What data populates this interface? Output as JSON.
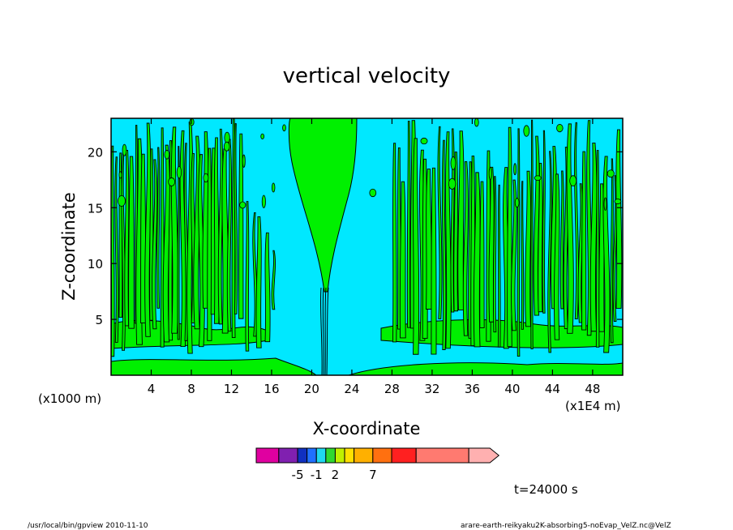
{
  "chart_data": {
    "type": "contour",
    "title": "vertical velocity",
    "xlabel": "X-coordinate",
    "ylabel": "Z-coordinate",
    "x_unit_note": "(x1E4 m)",
    "y_unit_note": "(x1000 m)",
    "x_ticks": [
      4,
      8,
      12,
      16,
      20,
      24,
      28,
      32,
      36,
      40,
      44,
      48
    ],
    "y_ticks": [
      5,
      10,
      15,
      20
    ],
    "xlim": [
      0,
      51
    ],
    "ylim": [
      0,
      23
    ],
    "time_label": "t=24000 s",
    "colorbar": {
      "labels": [
        {
          "value": -5,
          "text": "-5"
        },
        {
          "value": -1,
          "text": "-1"
        },
        {
          "value": 2,
          "text": "2"
        },
        {
          "value": 7,
          "text": "7"
        }
      ],
      "bins": [
        {
          "color": "#e000a0",
          "units": 1.2
        },
        {
          "color": "#8020b0",
          "units": 1.0
        },
        {
          "color": "#1030c0",
          "units": 0.5
        },
        {
          "color": "#2070ff",
          "units": 0.5
        },
        {
          "color": "#20d8f0",
          "units": 0.5
        },
        {
          "color": "#30d830",
          "units": 0.5
        },
        {
          "color": "#c0f000",
          "units": 0.5
        },
        {
          "color": "#ffe000",
          "units": 0.5
        },
        {
          "color": "#ffb000",
          "units": 1.0
        },
        {
          "color": "#ff7010",
          "units": 1.0
        },
        {
          "color": "#ff2020",
          "units": 1.3
        },
        {
          "color": "#ff7a70",
          "units": 2.8
        },
        {
          "color": "#ffb0b0",
          "units": 1.6,
          "arrow": true
        }
      ]
    },
    "field_colors": {
      "background": "#00e8ff",
      "positive": "#00f000",
      "contour": "#000000"
    }
  },
  "footer": {
    "left": "/usr/local/bin/gpview   2010-11-10",
    "right": "arare-earth-reikyaku2K-absorbing5-noEvap_VelZ.nc@VelZ"
  }
}
